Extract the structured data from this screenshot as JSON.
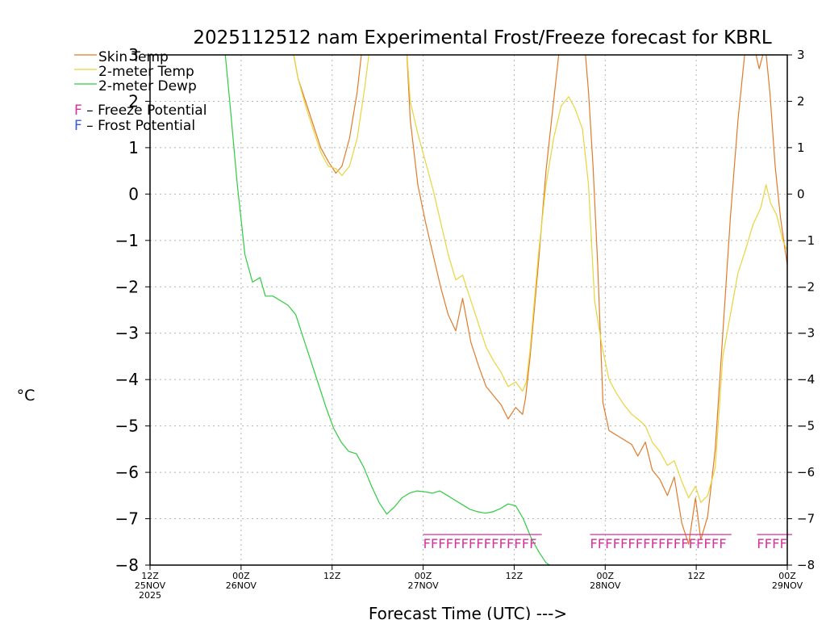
{
  "chart_data": {
    "type": "line",
    "title": "2025112512 nam Experimental Frost/Freeze forecast for KBRL",
    "ylabel": "°C",
    "xlabel": "Forecast Time (UTC) --->",
    "ylim": [
      -8,
      3
    ],
    "xlim_hours": [
      0,
      84
    ],
    "grid": true,
    "yticks": [
      3,
      2,
      1,
      0,
      -1,
      -2,
      -3,
      -4,
      -5,
      -6,
      -7,
      -8
    ],
    "yticklabels": [
      "3",
      "2",
      "1",
      "0",
      "−1",
      "−2",
      "−3",
      "−4",
      "−5",
      "−6",
      "−7",
      "−8"
    ],
    "xticks": [
      {
        "hour": 0,
        "lines": [
          "12Z",
          "25NOV",
          "2025"
        ]
      },
      {
        "hour": 12,
        "lines": [
          "00Z",
          "26NOV"
        ]
      },
      {
        "hour": 24,
        "lines": [
          "12Z"
        ]
      },
      {
        "hour": 36,
        "lines": [
          "00Z",
          "27NOV"
        ]
      },
      {
        "hour": 48,
        "lines": [
          "12Z"
        ]
      },
      {
        "hour": 60,
        "lines": [
          "00Z",
          "28NOV"
        ]
      },
      {
        "hour": 72,
        "lines": [
          "12Z"
        ]
      },
      {
        "hour": 84,
        "lines": [
          "00Z",
          "29NOV"
        ]
      }
    ],
    "series": [
      {
        "name": "Skin Temp",
        "color": "#e07b2a",
        "points": [
          [
            18.7,
            3.2
          ],
          [
            19.5,
            2.5
          ],
          [
            20.5,
            2.0
          ],
          [
            21.5,
            1.5
          ],
          [
            22.5,
            1.0
          ],
          [
            23.5,
            0.7
          ],
          [
            24.5,
            0.45
          ],
          [
            25.3,
            0.6
          ],
          [
            26.3,
            1.2
          ],
          [
            27.3,
            2.2
          ],
          [
            28.0,
            3.2
          ],
          [
            33.8,
            3.2
          ],
          [
            34.3,
            1.6
          ],
          [
            35.3,
            0.2
          ],
          [
            36.3,
            -0.6
          ],
          [
            37.3,
            -1.3
          ],
          [
            38.3,
            -2.0
          ],
          [
            39.3,
            -2.6
          ],
          [
            40.3,
            -2.95
          ],
          [
            41.2,
            -2.25
          ],
          [
            42.3,
            -3.2
          ],
          [
            43.3,
            -3.7
          ],
          [
            44.3,
            -4.15
          ],
          [
            45.3,
            -4.35
          ],
          [
            46.3,
            -4.55
          ],
          [
            47.2,
            -4.85
          ],
          [
            48.2,
            -4.6
          ],
          [
            49.1,
            -4.75
          ],
          [
            49.5,
            -4.4
          ],
          [
            50.1,
            -3.5
          ],
          [
            51.2,
            -1.5
          ],
          [
            52.2,
            0.5
          ],
          [
            53.2,
            2.0
          ],
          [
            54.0,
            3.2
          ],
          [
            57.3,
            3.2
          ],
          [
            57.8,
            2.2
          ],
          [
            58.4,
            0.6
          ],
          [
            59.0,
            -1.5
          ],
          [
            59.7,
            -4.5
          ],
          [
            60.5,
            -5.1
          ],
          [
            61.5,
            -5.2
          ],
          [
            62.5,
            -5.3
          ],
          [
            63.5,
            -5.4
          ],
          [
            64.3,
            -5.65
          ],
          [
            65.3,
            -5.35
          ],
          [
            66.2,
            -5.95
          ],
          [
            67.2,
            -6.15
          ],
          [
            68.2,
            -6.5
          ],
          [
            69.1,
            -6.1
          ],
          [
            70.1,
            -7.1
          ],
          [
            71.0,
            -7.55
          ],
          [
            71.9,
            -6.55
          ],
          [
            72.6,
            -7.45
          ],
          [
            73.5,
            -6.95
          ],
          [
            74.5,
            -5.5
          ],
          [
            75.5,
            -3.0
          ],
          [
            76.5,
            -0.5
          ],
          [
            77.5,
            1.6
          ],
          [
            78.5,
            3.2
          ],
          [
            79.6,
            3.2
          ],
          [
            80.3,
            2.7
          ],
          [
            81.1,
            3.2
          ],
          [
            81.7,
            2.2
          ],
          [
            82.4,
            0.6
          ],
          [
            83.1,
            -0.5
          ],
          [
            83.7,
            -1.2
          ],
          [
            84.2,
            -1.75
          ],
          [
            85.0,
            -1.7
          ]
        ]
      },
      {
        "name": "2-meter Temp",
        "color": "#e8d43c",
        "points": [
          [
            18.7,
            3.2
          ],
          [
            19.5,
            2.5
          ],
          [
            20.5,
            1.9
          ],
          [
            21.5,
            1.4
          ],
          [
            22.5,
            0.9
          ],
          [
            23.5,
            0.6
          ],
          [
            24.5,
            0.55
          ],
          [
            25.3,
            0.4
          ],
          [
            26.3,
            0.6
          ],
          [
            27.3,
            1.2
          ],
          [
            28.3,
            2.3
          ],
          [
            29.0,
            3.2
          ],
          [
            33.8,
            3.2
          ],
          [
            34.3,
            2.0
          ],
          [
            35.3,
            1.3
          ],
          [
            36.3,
            0.7
          ],
          [
            37.3,
            0.1
          ],
          [
            38.3,
            -0.6
          ],
          [
            39.3,
            -1.3
          ],
          [
            40.3,
            -1.85
          ],
          [
            41.2,
            -1.75
          ],
          [
            42.3,
            -2.3
          ],
          [
            43.3,
            -2.8
          ],
          [
            44.3,
            -3.3
          ],
          [
            45.3,
            -3.6
          ],
          [
            46.3,
            -3.85
          ],
          [
            47.2,
            -4.15
          ],
          [
            48.2,
            -4.05
          ],
          [
            49.1,
            -4.25
          ],
          [
            49.6,
            -4.05
          ],
          [
            50.1,
            -3.35
          ],
          [
            51.2,
            -1.3
          ],
          [
            52.2,
            0.2
          ],
          [
            53.2,
            1.2
          ],
          [
            54.2,
            1.9
          ],
          [
            55.2,
            2.1
          ],
          [
            56.0,
            1.85
          ],
          [
            57.0,
            1.4
          ],
          [
            57.8,
            0.2
          ],
          [
            58.6,
            -2.3
          ],
          [
            59.6,
            -3.3
          ],
          [
            60.5,
            -4.0
          ],
          [
            61.5,
            -4.3
          ],
          [
            62.5,
            -4.55
          ],
          [
            63.5,
            -4.75
          ],
          [
            64.3,
            -4.85
          ],
          [
            65.3,
            -5.0
          ],
          [
            66.2,
            -5.35
          ],
          [
            67.2,
            -5.55
          ],
          [
            68.2,
            -5.85
          ],
          [
            69.1,
            -5.75
          ],
          [
            70.1,
            -6.2
          ],
          [
            71.0,
            -6.55
          ],
          [
            71.9,
            -6.3
          ],
          [
            72.6,
            -6.65
          ],
          [
            73.5,
            -6.5
          ],
          [
            74.5,
            -5.9
          ],
          [
            75.5,
            -3.5
          ],
          [
            76.5,
            -2.6
          ],
          [
            77.5,
            -1.7
          ],
          [
            78.5,
            -1.2
          ],
          [
            79.5,
            -0.65
          ],
          [
            80.5,
            -0.3
          ],
          [
            81.2,
            0.2
          ],
          [
            81.8,
            -0.2
          ],
          [
            82.6,
            -0.45
          ],
          [
            83.4,
            -1.0
          ],
          [
            84.2,
            -1.3
          ],
          [
            85.0,
            -1.35
          ]
        ]
      },
      {
        "name": "2-meter Dewp",
        "color": "#2ecc40",
        "points": [
          [
            9.8,
            3.2
          ],
          [
            10.5,
            2.0
          ],
          [
            11.5,
            0.2
          ],
          [
            12.5,
            -1.3
          ],
          [
            13.5,
            -1.9
          ],
          [
            14.5,
            -1.8
          ],
          [
            15.2,
            -2.2
          ],
          [
            16.2,
            -2.2
          ],
          [
            17.2,
            -2.3
          ],
          [
            18.2,
            -2.4
          ],
          [
            19.2,
            -2.6
          ],
          [
            20.2,
            -3.1
          ],
          [
            21.2,
            -3.6
          ],
          [
            22.2,
            -4.1
          ],
          [
            23.2,
            -4.6
          ],
          [
            24.2,
            -5.05
          ],
          [
            25.2,
            -5.35
          ],
          [
            26.2,
            -5.55
          ],
          [
            27.2,
            -5.6
          ],
          [
            28.2,
            -5.9
          ],
          [
            29.2,
            -6.3
          ],
          [
            30.2,
            -6.65
          ],
          [
            31.2,
            -6.9
          ],
          [
            32.2,
            -6.75
          ],
          [
            33.2,
            -6.55
          ],
          [
            34.2,
            -6.45
          ],
          [
            35.2,
            -6.4
          ],
          [
            36.2,
            -6.42
          ],
          [
            37.2,
            -6.45
          ],
          [
            38.2,
            -6.4
          ],
          [
            39.2,
            -6.5
          ],
          [
            40.2,
            -6.6
          ],
          [
            41.2,
            -6.7
          ],
          [
            42.2,
            -6.8
          ],
          [
            43.2,
            -6.85
          ],
          [
            44.2,
            -6.88
          ],
          [
            45.2,
            -6.85
          ],
          [
            46.2,
            -6.78
          ],
          [
            47.2,
            -6.68
          ],
          [
            48.2,
            -6.72
          ],
          [
            49.2,
            -7.0
          ],
          [
            50.2,
            -7.4
          ],
          [
            51.2,
            -7.7
          ],
          [
            52.2,
            -7.95
          ],
          [
            53.2,
            -8.05
          ],
          [
            54.2,
            -8.15
          ]
        ]
      }
    ],
    "legend": [
      "Skin Temp",
      "2-meter Temp",
      "2-meter Dewp"
    ],
    "potential_legend": [
      {
        "glyph": "F",
        "text": " – Freeze Potential",
        "color": "#d6309a"
      },
      {
        "glyph": "F",
        "text": " – Frost Potential",
        "color": "#3c5cc8"
      }
    ],
    "freeze_marks": {
      "glyph": "F",
      "color": "#d6309a",
      "y_value": -7.55,
      "runs": [
        {
          "start_hour": 36.0,
          "count": 15,
          "step_hours": 1.0
        },
        {
          "start_hour": 58.0,
          "count": 18,
          "step_hours": 1.0
        },
        {
          "start_hour": 80.0,
          "count": 4,
          "step_hours": 1.0
        }
      ]
    }
  }
}
